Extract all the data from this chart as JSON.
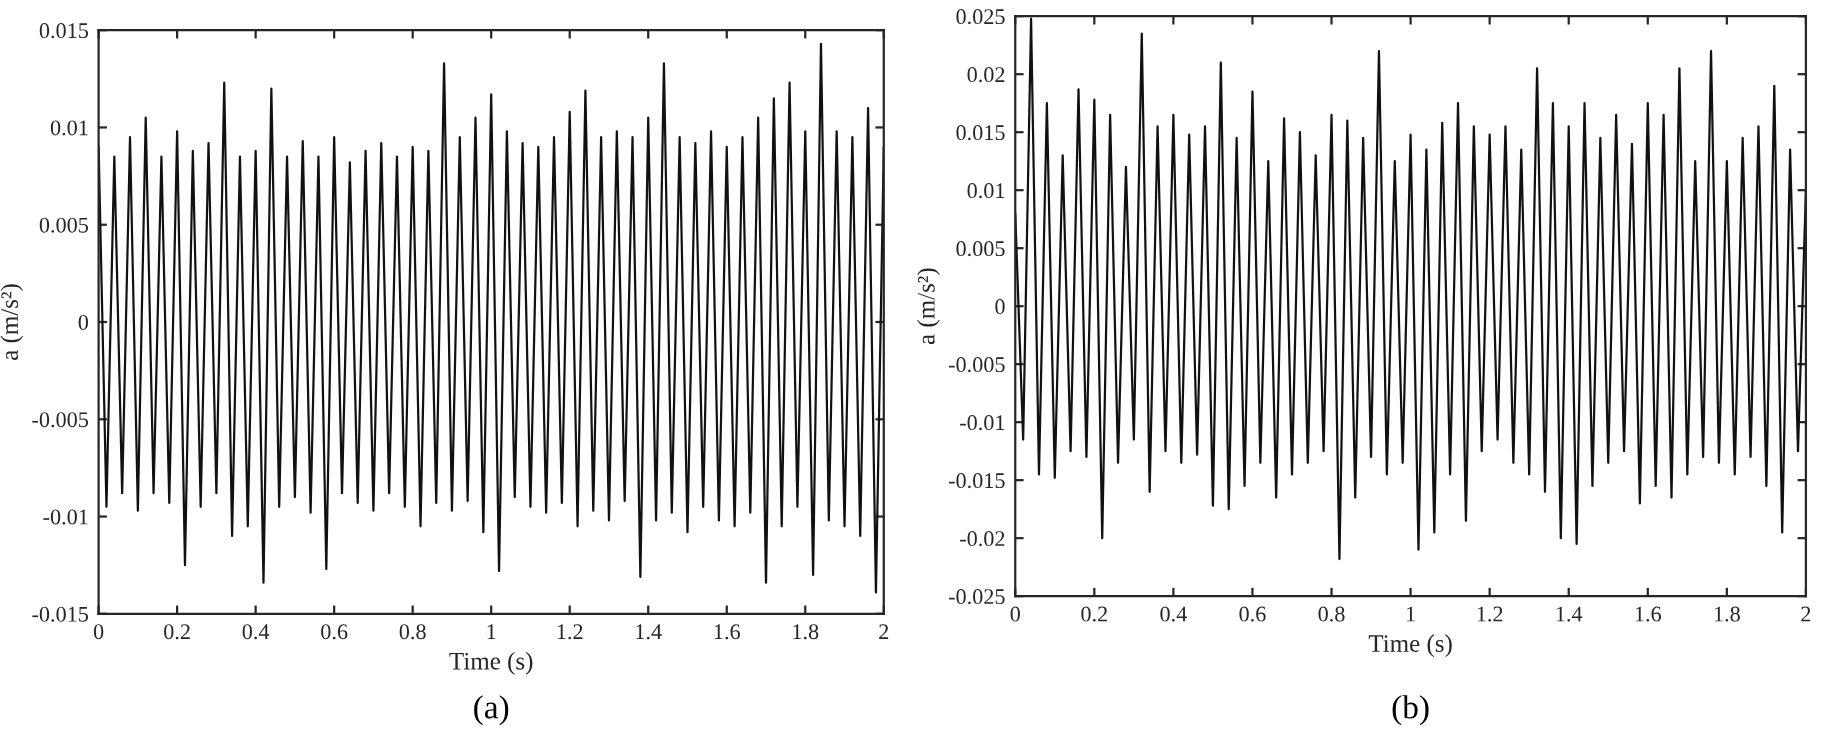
{
  "chart_data": [
    {
      "type": "line",
      "xlabel": "Time (s)",
      "ylabel": "a (m/s²)",
      "annotations": [
        "(a)"
      ],
      "xlim": [
        0,
        2
      ],
      "ylim": [
        -0.015,
        0.015
      ],
      "xticks": [
        0,
        0.2,
        0.4,
        0.6,
        0.8,
        1,
        1.2,
        1.4,
        1.6,
        1.8,
        2
      ],
      "yticks": [
        -0.015,
        -0.01,
        -0.005,
        0,
        0.005,
        0.01,
        0.015
      ],
      "series": [
        {
          "color": "#111111",
          "x": [
            0,
            0.02,
            0.04,
            0.06,
            0.08,
            0.1,
            0.12,
            0.14,
            0.16,
            0.18,
            0.2,
            0.22,
            0.24,
            0.26,
            0.28,
            0.3,
            0.32,
            0.34,
            0.36,
            0.38,
            0.4,
            0.42,
            0.44,
            0.46,
            0.48,
            0.5,
            0.52,
            0.54,
            0.56,
            0.58,
            0.6,
            0.62,
            0.64,
            0.66,
            0.68,
            0.7,
            0.72,
            0.74,
            0.76,
            0.78,
            0.8,
            0.82,
            0.84,
            0.86,
            0.88,
            0.9,
            0.92,
            0.94,
            0.96,
            0.98,
            1,
            1.02,
            1.04,
            1.06,
            1.08,
            1.1,
            1.12,
            1.14,
            1.16,
            1.18,
            1.2,
            1.22,
            1.24,
            1.26,
            1.28,
            1.3,
            1.32,
            1.34,
            1.36,
            1.38,
            1.4,
            1.42,
            1.44,
            1.46,
            1.48,
            1.5,
            1.52,
            1.54,
            1.56,
            1.58,
            1.6,
            1.62,
            1.64,
            1.66,
            1.68,
            1.7,
            1.72,
            1.74,
            1.76,
            1.78,
            1.8,
            1.82,
            1.84,
            1.86,
            1.88,
            1.9,
            1.92,
            1.94,
            1.96,
            1.98,
            2
          ],
          "values": [
            0.009,
            -0.0095,
            0.0085,
            -0.0088,
            0.0095,
            -0.0097,
            0.0105,
            -0.0088,
            0.0085,
            -0.0093,
            0.0098,
            -0.0125,
            0.0088,
            -0.0095,
            0.0092,
            -0.0088,
            0.0123,
            -0.011,
            0.0085,
            -0.0105,
            0.0088,
            -0.0134,
            0.012,
            -0.0095,
            0.0085,
            -0.009,
            0.0093,
            -0.0098,
            0.0085,
            -0.0127,
            0.0095,
            -0.0088,
            0.0082,
            -0.0093,
            0.0088,
            -0.0097,
            0.0092,
            -0.0088,
            0.0085,
            -0.0095,
            0.009,
            -0.0105,
            0.0088,
            -0.0093,
            0.0133,
            -0.0097,
            0.0095,
            -0.0092,
            0.0105,
            -0.0108,
            0.0117,
            -0.0128,
            0.0098,
            -0.009,
            0.0092,
            -0.0095,
            0.009,
            -0.0098,
            0.0095,
            -0.0093,
            0.0108,
            -0.0105,
            0.0119,
            -0.0097,
            0.0095,
            -0.0102,
            0.0098,
            -0.0092,
            0.0095,
            -0.0131,
            0.0105,
            -0.0102,
            0.0133,
            -0.0098,
            0.0095,
            -0.0108,
            0.0092,
            -0.0095,
            0.0098,
            -0.0102,
            0.009,
            -0.0105,
            0.0095,
            -0.0098,
            0.0105,
            -0.0134,
            0.0115,
            -0.0105,
            0.0123,
            -0.0095,
            0.0098,
            -0.013,
            0.0143,
            -0.0102,
            0.0098,
            -0.0105,
            0.0095,
            -0.011,
            0.011,
            -0.0139,
            0.009
          ]
        }
      ]
    },
    {
      "type": "line",
      "xlabel": "Time (s)",
      "ylabel": "a (m/s²)",
      "annotations": [
        "(b)"
      ],
      "xlim": [
        0,
        2
      ],
      "ylim": [
        -0.025,
        0.025
      ],
      "xticks": [
        0,
        0.2,
        0.4,
        0.6,
        0.8,
        1,
        1.2,
        1.4,
        1.6,
        1.8,
        2
      ],
      "yticks": [
        -0.025,
        -0.02,
        -0.015,
        -0.01,
        -0.005,
        0,
        0.005,
        0.01,
        0.015,
        0.02,
        0.025
      ],
      "series": [
        {
          "color": "#111111",
          "x": [
            0,
            0.02,
            0.04,
            0.06,
            0.08,
            0.1,
            0.12,
            0.14,
            0.16,
            0.18,
            0.2,
            0.22,
            0.24,
            0.26,
            0.28,
            0.3,
            0.32,
            0.34,
            0.36,
            0.38,
            0.4,
            0.42,
            0.44,
            0.46,
            0.48,
            0.5,
            0.52,
            0.54,
            0.56,
            0.58,
            0.6,
            0.62,
            0.64,
            0.66,
            0.68,
            0.7,
            0.72,
            0.74,
            0.76,
            0.78,
            0.8,
            0.82,
            0.84,
            0.86,
            0.88,
            0.9,
            0.92,
            0.94,
            0.96,
            0.98,
            1,
            1.02,
            1.04,
            1.06,
            1.08,
            1.1,
            1.12,
            1.14,
            1.16,
            1.18,
            1.2,
            1.22,
            1.24,
            1.26,
            1.28,
            1.3,
            1.32,
            1.34,
            1.36,
            1.38,
            1.4,
            1.42,
            1.44,
            1.46,
            1.48,
            1.5,
            1.52,
            1.54,
            1.56,
            1.58,
            1.6,
            1.62,
            1.64,
            1.66,
            1.68,
            1.7,
            1.72,
            1.74,
            1.76,
            1.78,
            1.8,
            1.82,
            1.84,
            1.86,
            1.88,
            1.9,
            1.92,
            1.94,
            1.96,
            1.98,
            2
          ],
          "values": [
            0.008,
            -0.0115,
            0.0248,
            -0.0145,
            0.0175,
            -0.0148,
            0.013,
            -0.0125,
            0.0187,
            -0.013,
            0.0178,
            -0.02,
            0.0165,
            -0.0135,
            0.012,
            -0.0115,
            0.0235,
            -0.016,
            0.0155,
            -0.0125,
            0.0165,
            -0.0135,
            0.0148,
            -0.0128,
            0.0155,
            -0.0172,
            0.021,
            -0.0175,
            0.0145,
            -0.0155,
            0.0185,
            -0.0135,
            0.0125,
            -0.0165,
            0.0162,
            -0.0145,
            0.015,
            -0.0135,
            0.013,
            -0.0125,
            0.0165,
            -0.0218,
            0.016,
            -0.0165,
            0.0145,
            -0.013,
            0.022,
            -0.0145,
            0.0125,
            -0.0135,
            0.0148,
            -0.021,
            0.0135,
            -0.0195,
            0.0158,
            -0.0145,
            0.0175,
            -0.0185,
            0.0155,
            -0.0125,
            0.0148,
            -0.0115,
            0.0155,
            -0.0135,
            0.0135,
            -0.0145,
            0.0205,
            -0.016,
            0.0175,
            -0.02,
            0.0155,
            -0.0205,
            0.0175,
            -0.0155,
            0.0145,
            -0.0135,
            0.0165,
            -0.0125,
            0.014,
            -0.017,
            0.0175,
            -0.0155,
            0.0165,
            -0.0165,
            0.0205,
            -0.0145,
            0.0125,
            -0.013,
            0.022,
            -0.0135,
            0.0125,
            -0.0145,
            0.0145,
            -0.013,
            0.0155,
            -0.0155,
            0.019,
            -0.0195,
            0.0135,
            -0.0125,
            0.01
          ]
        }
      ]
    }
  ]
}
